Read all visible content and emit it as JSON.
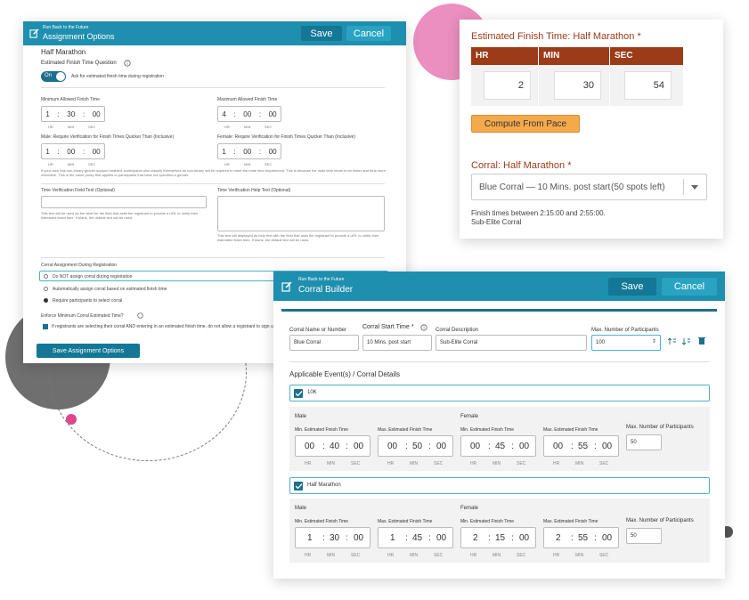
{
  "assignment_options": {
    "breadcrumb": "Run Back to the Future",
    "title": "Assignment Options",
    "save_label": "Save",
    "cancel_label": "Cancel",
    "event_name": "Half Marathon",
    "question_label": "Estimated Finish Time Question",
    "toggle_label": "On",
    "toggle_desc": "Ask for estimated finish time during registration",
    "min_allowed_label": "Minimum Allowed Finish Time",
    "min_allowed": {
      "hr": "1",
      "min": "30",
      "sec": "00"
    },
    "max_allowed_label": "Maximum Allowed Finish Time",
    "max_allowed": {
      "hr": "4",
      "min": "00",
      "sec": "00"
    },
    "unit_hr": "HR",
    "unit_min": "MIN",
    "unit_sec": "SEC",
    "male_verify_label": "Male: Require Verification for Finish Times Quicker Than (Inclusive)",
    "male_verify": {
      "hr": "1",
      "min": "00",
      "sec": "00"
    },
    "female_verify_label": "Female: Require Verification for Finish Times Quicker Than (Inclusive)",
    "female_verify": {
      "hr": "1",
      "min": "00",
      "sec": "00"
    },
    "gender_note": "If your race has non-binary gender support enabled, participants who classify themselves as non-binary will be required to meet the male time requirement. This is because the male time tends to be faster and thus more restrictive. This is the same policy that applies to participants that have not specified a gender.",
    "verify_field_label": "Time Verification Field Text (Optional)",
    "verify_field_help": "This text will be used as the label for the field that asks the registrant to provide a URL to verify their estimated finish time. If blank, the default text will be used.",
    "verify_help_label": "Time Verification Help Text (Optional)",
    "verify_help_help": "This text will displayed as help text with the field that asks the registrant to provide a URL to verify their estimated finish time. If blank, the default text will be used.",
    "corral_assign_label": "Corral Assignment During Registration",
    "radio_options": [
      "Do NOT assign corral during registration",
      "Automatically assign corral based on estimated finish time",
      "Require participants to select corral"
    ],
    "enforce_label": "Enforce Minimum Corral Estimated Time?",
    "enforce_text": "If registrants are selecting their corral AND entering in an estimated finish time, do not allow a registrant to sign up for",
    "save_options_label": "Save Assignment Options"
  },
  "finish_time": {
    "title": "Estimated Finish Time: Half Marathon",
    "required_mark": "*",
    "headers": [
      "HR",
      "MIN",
      "SEC"
    ],
    "values": [
      "2",
      "30",
      "54"
    ],
    "compute_label": "Compute From Pace",
    "corral_label": "Corral: Half Marathon",
    "corral_selected": "Blue Corral — 10 Mins. post start",
    "corral_spots": "(50 spots left)",
    "note_line1": "Finish times between 2:15:00 and 2:55:00.",
    "note_line2": "Sub-Elite Corral",
    "accent": "#9c3b18",
    "button_color": "#f4a94a"
  },
  "corral_builder": {
    "breadcrumb": "Run Back to the Future",
    "title": "Corral Builder",
    "save_label": "Save",
    "cancel_label": "Cancel",
    "col_name": "Corral Name or Number",
    "col_start": "Corral Start Time",
    "col_desc": "Corral Description",
    "col_max": "Max. Number of Participants",
    "name_value": "Blue Corral",
    "start_value": "10 Mins. post start",
    "desc_value": "Sub-Elite Corral",
    "max_value": "100",
    "details_label": "Applicable Event(s) / Corral Details",
    "male_label": "Male",
    "female_label": "Female",
    "min_est_label": "Min. Estimated Finish Time",
    "max_est_label": "Max. Estimated Finish Time",
    "max_participants_label": "Max. Number of Participants",
    "unit_hr": "HR",
    "unit_min": "MIN",
    "unit_sec": "SEC",
    "events": [
      {
        "name": "10K",
        "male_min": [
          "00",
          "40",
          "00"
        ],
        "male_max": [
          "00",
          "50",
          "00"
        ],
        "female_min": [
          "00",
          "45",
          "00"
        ],
        "female_max": [
          "00",
          "55",
          "00"
        ],
        "max_participants": "50"
      },
      {
        "name": "Half Marathon",
        "male_min": [
          "1",
          "30",
          "00"
        ],
        "male_max": [
          "1",
          "45",
          "00"
        ],
        "female_min": [
          "2",
          "15",
          "00"
        ],
        "female_max": [
          "2",
          "55",
          "00"
        ],
        "max_participants": "50"
      }
    ]
  }
}
